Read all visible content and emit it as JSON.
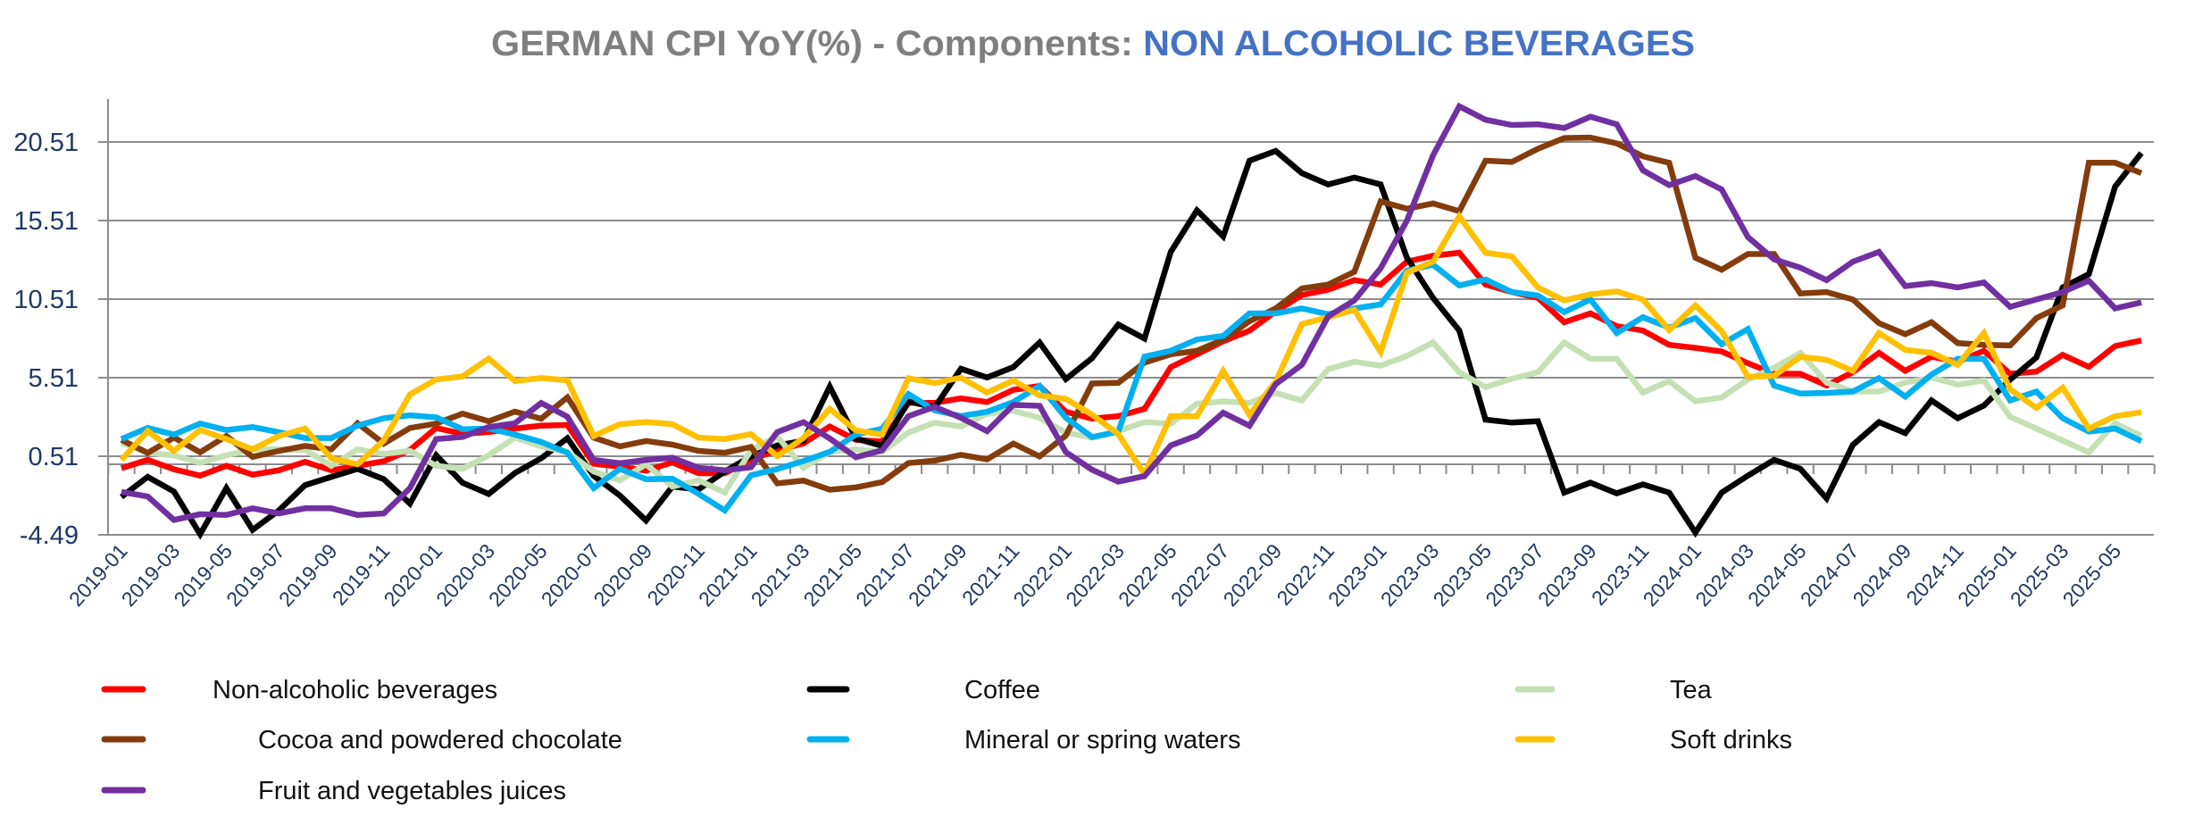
{
  "chart_data": {
    "type": "line",
    "title": "GERMAN CPI YoY(%) - Components: NON ALCOHOLIC BEVERAGES",
    "title_parts": [
      {
        "text": "GERMAN CPI YoY(%) - Components: ",
        "color": "#7f7f7f"
      },
      {
        "text": "NON ALCOHOLIC BEVERAGES",
        "color": "#4472c4"
      }
    ],
    "xlabel": "",
    "ylabel": "",
    "ylim": [
      -4.49,
      23.24
    ],
    "yticks": [
      -4.49,
      0.51,
      5.51,
      10.51,
      15.51,
      20.51
    ],
    "ytick_labels": [
      "-4.49",
      "0.51",
      "5.51",
      "10.51",
      "15.51",
      "20.51"
    ],
    "grid": true,
    "legend_position": "bottom",
    "x": [
      "2019-01",
      "2019-02",
      "2019-03",
      "2019-04",
      "2019-05",
      "2019-06",
      "2019-07",
      "2019-08",
      "2019-09",
      "2019-10",
      "2019-11",
      "2019-12",
      "2020-01",
      "2020-02",
      "2020-03",
      "2020-04",
      "2020-05",
      "2020-06",
      "2020-07",
      "2020-08",
      "2020-09",
      "2020-10",
      "2020-11",
      "2020-12",
      "2021-01",
      "2021-02",
      "2021-03",
      "2021-04",
      "2021-05",
      "2021-06",
      "2021-07",
      "2021-08",
      "2021-09",
      "2021-10",
      "2021-11",
      "2021-12",
      "2022-01",
      "2022-02",
      "2022-03",
      "2022-04",
      "2022-05",
      "2022-06",
      "2022-07",
      "2022-08",
      "2022-09",
      "2022-10",
      "2022-11",
      "2022-12",
      "2023-01",
      "2023-02",
      "2023-03",
      "2023-04",
      "2023-05",
      "2023-06",
      "2023-07",
      "2023-08",
      "2023-09",
      "2023-10",
      "2023-11",
      "2023-12",
      "2024-01",
      "2024-02",
      "2024-03",
      "2024-04",
      "2024-05",
      "2024-06",
      "2024-07",
      "2024-08",
      "2024-09",
      "2024-10",
      "2024-11",
      "2024-12",
      "2025-01",
      "2025-02",
      "2025-03",
      "2025-04",
      "2025-05",
      "2025-06"
    ],
    "xtick_labels": [
      "2019-01",
      "2019-03",
      "2019-05",
      "2019-07",
      "2019-09",
      "2019-11",
      "2020-01",
      "2020-03",
      "2020-05",
      "2020-07",
      "2020-09",
      "2020-11",
      "2021-01",
      "2021-03",
      "2021-05",
      "2021-07",
      "2021-09",
      "2021-11",
      "2022-01",
      "2022-03",
      "2022-05",
      "2022-07",
      "2022-09",
      "2022-11",
      "2023-01",
      "2023-03",
      "2023-05",
      "2023-07",
      "2023-09",
      "2023-11",
      "2024-01",
      "2024-03",
      "2024-05",
      "2024-07",
      "2024-09",
      "2024-11",
      "2025-01",
      "2025-03",
      "2025-05"
    ],
    "series": [
      {
        "name": "Non-alcoholic beverages",
        "color": "#ff0000",
        "values": [
          -0.25,
          0.28,
          -0.32,
          -0.72,
          -0.1,
          -0.66,
          -0.38,
          0.15,
          -0.38,
          -0.1,
          0.19,
          0.91,
          2.31,
          1.93,
          2.05,
          2.27,
          2.46,
          2.5,
          0.04,
          -0.15,
          -0.41,
          0.12,
          -0.57,
          -0.57,
          0.3,
          0.9,
          1.33,
          2.4,
          1.55,
          1.45,
          3.91,
          3.91,
          4.19,
          3.96,
          4.73,
          4.99,
          3.34,
          2.91,
          3.06,
          3.53,
          6.18,
          7.0,
          7.83,
          8.5,
          9.73,
          10.77,
          11.11,
          11.72,
          11.44,
          12.89,
          13.27,
          13.46,
          11.44,
          10.96,
          10.59,
          9.04,
          9.6,
          8.79,
          8.51,
          7.6,
          7.41,
          7.18,
          6.43,
          5.76,
          5.76,
          5.01,
          5.86,
          7.09,
          5.95,
          6.84,
          6.52,
          7.22,
          5.76,
          5.9,
          6.96,
          6.2,
          7.52,
          7.88
        ]
      },
      {
        "name": "Coffee",
        "color": "#000000",
        "values": [
          -2.08,
          -0.8,
          -1.74,
          -4.45,
          -1.52,
          -4.17,
          -2.94,
          -1.33,
          -0.8,
          -0.29,
          -0.95,
          -2.5,
          0.57,
          -1.18,
          -1.89,
          -0.56,
          0.38,
          1.66,
          -0.74,
          -1.99,
          -3.58,
          -1.42,
          -1.6,
          -0.46,
          0.5,
          1.2,
          1.5,
          4.94,
          1.64,
          1.17,
          4.0,
          3.62,
          6.08,
          5.52,
          6.18,
          7.75,
          5.42,
          6.75,
          8.89,
          8.0,
          13.52,
          16.16,
          14.5,
          19.32,
          19.94,
          18.53,
          17.81,
          18.25,
          17.81,
          13.14,
          10.59,
          8.51,
          2.84,
          2.65,
          2.74,
          -1.8,
          -1.17,
          -1.85,
          -1.28,
          -1.8,
          -4.35,
          -1.8,
          -0.72,
          0.28,
          -0.29,
          -2.17,
          1.23,
          2.68,
          1.98,
          4.06,
          2.93,
          3.74,
          5.39,
          6.8,
          11.25,
          12.1,
          17.67,
          19.81
        ]
      },
      {
        "name": "Tea",
        "color": "#c5e0b4",
        "values": [
          1.36,
          0.72,
          0.57,
          0.09,
          0.57,
          0.95,
          0.95,
          0.91,
          -0.1,
          0.95,
          0.66,
          0.85,
          -0.1,
          -0.29,
          0.57,
          1.7,
          1.14,
          0.79,
          -0.46,
          -1.02,
          0.0,
          -1.42,
          -1.02,
          -1.8,
          0.9,
          1.77,
          -0.22,
          0.79,
          0.94,
          0.79,
          2.02,
          2.64,
          2.4,
          3.21,
          3.4,
          2.96,
          2.02,
          1.69,
          2.11,
          2.68,
          2.58,
          3.85,
          4.0,
          3.91,
          4.54,
          4.06,
          6.05,
          6.52,
          6.28,
          6.9,
          7.75,
          5.86,
          4.91,
          5.44,
          5.86,
          7.75,
          6.71,
          6.71,
          4.57,
          5.29,
          4.01,
          4.25,
          5.39,
          6.14,
          7.09,
          5.2,
          4.63,
          4.63,
          5.2,
          5.52,
          5.07,
          5.33,
          3.02,
          2.27,
          1.51,
          0.76,
          2.61,
          1.8
        ]
      },
      {
        "name": "Cocoa and powdered chocolate",
        "color": "#843c0c",
        "values": [
          1.55,
          0.72,
          1.7,
          0.76,
          1.8,
          0.47,
          0.85,
          1.17,
          0.95,
          2.61,
          1.32,
          2.31,
          2.59,
          3.22,
          2.74,
          3.35,
          2.9,
          4.26,
          1.7,
          1.14,
          1.48,
          1.25,
          0.85,
          0.73,
          1.1,
          -1.21,
          -1.04,
          -1.62,
          -1.47,
          -1.13,
          0.08,
          0.23,
          0.6,
          0.31,
          1.32,
          0.5,
          1.83,
          5.14,
          5.18,
          6.47,
          7.0,
          7.22,
          7.94,
          9.1,
          9.92,
          11.19,
          11.44,
          12.25,
          16.73,
          16.26,
          16.6,
          16.11,
          19.32,
          19.24,
          20.08,
          20.76,
          20.79,
          20.42,
          19.6,
          19.19,
          13.14,
          12.38,
          13.38,
          13.38,
          10.87,
          10.96,
          10.49,
          8.98,
          8.28,
          9.04,
          7.71,
          7.6,
          7.56,
          9.3,
          10.11,
          19.19,
          19.19,
          18.53
        ]
      },
      {
        "name": "Mineral or spring waters",
        "color": "#00b0f0",
        "values": [
          1.61,
          2.31,
          1.89,
          2.59,
          2.18,
          2.37,
          2.04,
          1.67,
          1.67,
          2.46,
          2.93,
          3.12,
          2.99,
          2.23,
          2.27,
          1.89,
          1.42,
          0.73,
          -1.52,
          -0.29,
          -0.95,
          -0.92,
          -1.88,
          -2.94,
          -0.7,
          -0.3,
          0.21,
          0.79,
          1.89,
          2.26,
          4.47,
          3.43,
          3.06,
          3.34,
          3.96,
          4.99,
          2.96,
          1.73,
          2.07,
          6.85,
          7.22,
          7.94,
          8.17,
          9.6,
          9.6,
          9.92,
          9.55,
          9.92,
          10.17,
          12.32,
          12.7,
          11.38,
          11.76,
          10.96,
          10.74,
          9.68,
          10.49,
          8.35,
          9.36,
          8.7,
          9.3,
          7.65,
          8.6,
          5.01,
          4.5,
          4.54,
          4.63,
          5.48,
          4.31,
          5.71,
          6.71,
          6.71,
          4.06,
          4.63,
          2.93,
          2.08,
          2.27,
          1.47
        ]
      },
      {
        "name": "Soft drinks",
        "color": "#ffc000",
        "values": [
          0.28,
          2.12,
          0.85,
          2.18,
          1.61,
          0.95,
          1.8,
          2.27,
          0.38,
          0.0,
          1.51,
          4.45,
          5.4,
          5.59,
          6.72,
          5.3,
          5.49,
          5.34,
          1.8,
          2.55,
          2.69,
          2.55,
          1.7,
          1.61,
          1.92,
          0.52,
          1.67,
          3.53,
          2.15,
          1.89,
          5.47,
          5.17,
          5.51,
          4.57,
          5.33,
          4.38,
          4.16,
          3.15,
          1.92,
          -0.64,
          3.06,
          3.06,
          5.94,
          3.15,
          5.25,
          8.92,
          9.36,
          9.83,
          7.15,
          12.19,
          12.89,
          15.78,
          13.46,
          13.23,
          11.25,
          10.43,
          10.81,
          11.0,
          10.49,
          8.54,
          10.11,
          8.47,
          5.57,
          5.63,
          6.84,
          6.65,
          5.95,
          8.35,
          7.28,
          7.09,
          6.33,
          8.35,
          4.76,
          3.59,
          4.88,
          2.27,
          3.06,
          3.31
        ]
      },
      {
        "name": "Fruit and vegetables juices",
        "color": "#7030a0",
        "values": [
          -1.76,
          -2.05,
          -3.54,
          -3.18,
          -3.22,
          -2.8,
          -3.13,
          -2.8,
          -2.8,
          -3.22,
          -3.13,
          -1.52,
          1.61,
          1.74,
          2.37,
          2.61,
          3.9,
          3.03,
          0.28,
          0.06,
          0.28,
          0.42,
          -0.23,
          -0.38,
          -0.19,
          2.05,
          2.68,
          1.64,
          0.45,
          0.89,
          3.06,
          3.66,
          2.96,
          2.11,
          3.78,
          3.72,
          0.78,
          -0.35,
          -1.11,
          -0.75,
          1.2,
          1.83,
          3.28,
          2.45,
          5.1,
          6.33,
          9.41,
          10.43,
          12.48,
          15.5,
          19.66,
          22.78,
          21.93,
          21.59,
          21.64,
          21.4,
          22.12,
          21.64,
          18.71,
          17.77,
          18.34,
          17.49,
          14.46,
          13.04,
          12.51,
          11.72,
          12.89,
          13.52,
          11.34,
          11.53,
          11.25,
          11.57,
          10.02,
          10.49,
          10.96,
          11.68,
          9.92,
          10.3
        ]
      }
    ]
  },
  "legend": {
    "items": [
      {
        "label": "Non-alcoholic beverages",
        "color": "#ff0000"
      },
      {
        "label": "Coffee",
        "color": "#000000"
      },
      {
        "label": "Tea",
        "color": "#c5e0b4"
      },
      {
        "label": "Cocoa and powdered chocolate",
        "color": "#843c0c"
      },
      {
        "label": "Mineral or spring waters",
        "color": "#00b0f0"
      },
      {
        "label": "Soft drinks",
        "color": "#ffc000"
      },
      {
        "label": "Fruit and vegetables juices",
        "color": "#7030a0"
      }
    ]
  }
}
